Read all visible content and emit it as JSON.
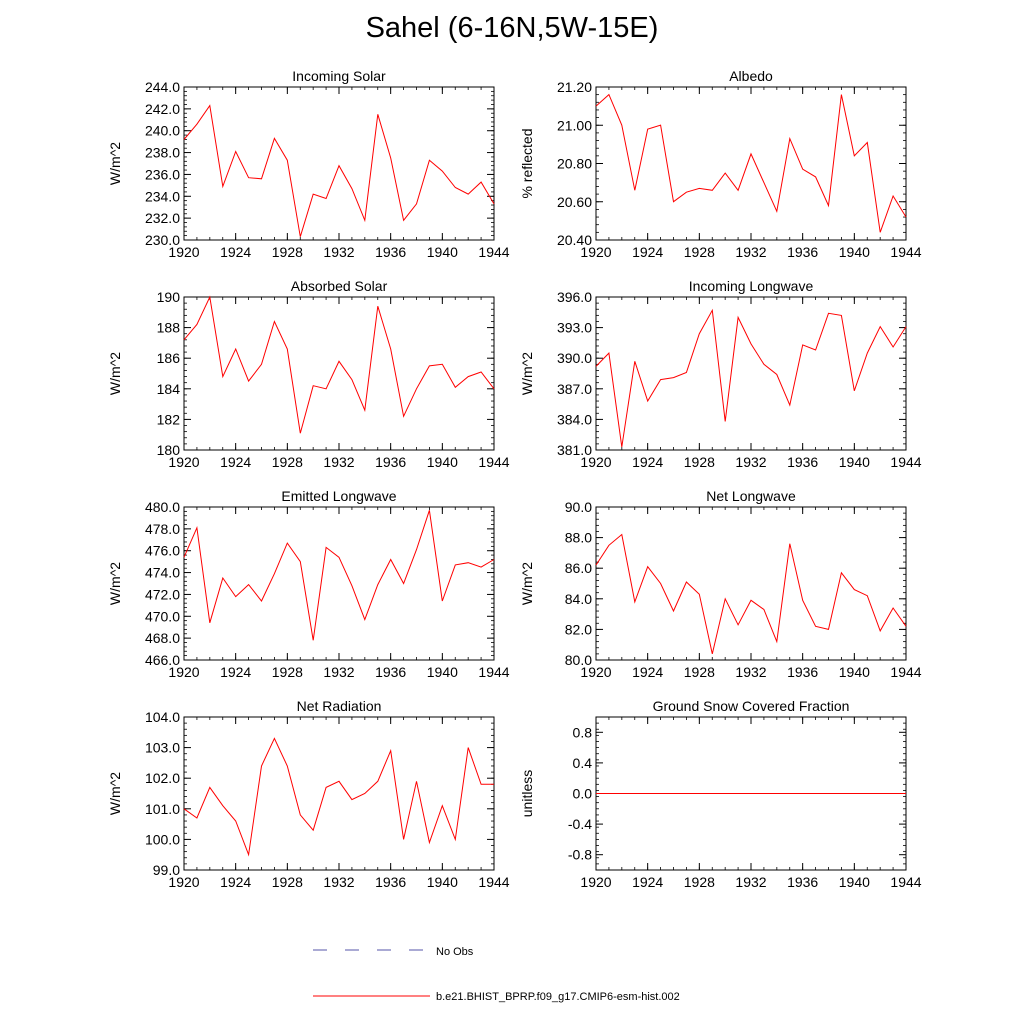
{
  "title": "Sahel (6-16N,5W-15E)",
  "colors": {
    "model": "#ff0000",
    "obs": "#5555aa",
    "axis": "#000000"
  },
  "legend": {
    "obs_label": "No Obs",
    "model_label": "b.e21.BHIST_BPRP.f09_g17.CMIP6-esm-hist.002"
  },
  "chart_data": [
    {
      "type": "line",
      "title": "Incoming Solar",
      "ylabel": "W/m^2",
      "xlim": [
        1920,
        1944
      ],
      "ylim": [
        230,
        244
      ],
      "xticks": [
        "1920",
        "1924",
        "1928",
        "1932",
        "1936",
        "1940",
        "1944"
      ],
      "yticks": [
        "230.0",
        "232.0",
        "234.0",
        "236.0",
        "238.0",
        "240.0",
        "242.0",
        "244.0"
      ],
      "x": [
        1920,
        1921,
        1922,
        1923,
        1924,
        1925,
        1926,
        1927,
        1928,
        1929,
        1930,
        1931,
        1932,
        1933,
        1934,
        1935,
        1936,
        1937,
        1938,
        1939,
        1940,
        1941,
        1942,
        1943,
        1944
      ],
      "series": [
        {
          "name": "b.e21.BHIST_BPRP.f09_g17.CMIP6-esm-hist.002",
          "values": [
            239.2,
            240.6,
            242.3,
            234.9,
            238.1,
            235.7,
            235.6,
            239.3,
            237.3,
            230.3,
            234.2,
            233.8,
            236.8,
            234.7,
            231.8,
            241.5,
            237.5,
            231.8,
            233.3,
            237.3,
            236.3,
            234.8,
            234.2,
            235.3,
            233.3
          ]
        }
      ]
    },
    {
      "type": "line",
      "title": "Albedo",
      "ylabel": "% reflected",
      "xlim": [
        1920,
        1944
      ],
      "ylim": [
        20.4,
        21.2
      ],
      "xticks": [
        "1920",
        "1924",
        "1928",
        "1932",
        "1936",
        "1940",
        "1944"
      ],
      "yticks": [
        "20.40",
        "20.60",
        "20.80",
        "21.00",
        "21.20"
      ],
      "x": [
        1920,
        1921,
        1922,
        1923,
        1924,
        1925,
        1926,
        1927,
        1928,
        1929,
        1930,
        1931,
        1932,
        1933,
        1934,
        1935,
        1936,
        1937,
        1938,
        1939,
        1940,
        1941,
        1942,
        1943,
        1944
      ],
      "series": [
        {
          "name": "b.e21.BHIST_BPRP.f09_g17.CMIP6-esm-hist.002",
          "values": [
            21.1,
            21.16,
            21.0,
            20.66,
            20.98,
            21.0,
            20.6,
            20.65,
            20.67,
            20.66,
            20.75,
            20.66,
            20.85,
            20.7,
            20.55,
            20.93,
            20.77,
            20.73,
            20.58,
            21.16,
            20.84,
            20.91,
            20.44,
            20.63,
            20.52
          ]
        }
      ]
    },
    {
      "type": "line",
      "title": "Absorbed Solar",
      "ylabel": "W/m^2",
      "xlim": [
        1920,
        1944
      ],
      "ylim": [
        180,
        190
      ],
      "xticks": [
        "1920",
        "1924",
        "1928",
        "1932",
        "1936",
        "1940",
        "1944"
      ],
      "yticks": [
        "180",
        "182",
        "184",
        "186",
        "188",
        "190"
      ],
      "x": [
        1920,
        1921,
        1922,
        1923,
        1924,
        1925,
        1926,
        1927,
        1928,
        1929,
        1930,
        1931,
        1932,
        1933,
        1934,
        1935,
        1936,
        1937,
        1938,
        1939,
        1940,
        1941,
        1942,
        1943,
        1944
      ],
      "series": [
        {
          "name": "b.e21.BHIST_BPRP.f09_g17.CMIP6-esm-hist.002",
          "values": [
            187.2,
            188.2,
            190.0,
            184.8,
            186.6,
            184.5,
            185.6,
            188.4,
            186.6,
            181.1,
            184.2,
            184.0,
            185.8,
            184.6,
            182.6,
            189.4,
            186.6,
            182.2,
            184.0,
            185.5,
            185.6,
            184.1,
            184.8,
            185.1,
            184.0
          ]
        }
      ]
    },
    {
      "type": "line",
      "title": "Incoming Longwave",
      "ylabel": "W/m^2",
      "xlim": [
        1920,
        1944
      ],
      "ylim": [
        381,
        396
      ],
      "xticks": [
        "1920",
        "1924",
        "1928",
        "1932",
        "1936",
        "1940",
        "1944"
      ],
      "yticks": [
        "381.0",
        "384.0",
        "387.0",
        "390.0",
        "393.0",
        "396.0"
      ],
      "x": [
        1920,
        1921,
        1922,
        1923,
        1924,
        1925,
        1926,
        1927,
        1928,
        1929,
        1930,
        1931,
        1932,
        1933,
        1934,
        1935,
        1936,
        1937,
        1938,
        1939,
        1940,
        1941,
        1942,
        1943,
        1944
      ],
      "series": [
        {
          "name": "b.e21.BHIST_BPRP.f09_g17.CMIP6-esm-hist.002",
          "values": [
            389.2,
            390.5,
            381.3,
            389.7,
            385.8,
            387.9,
            388.1,
            388.6,
            392.4,
            394.7,
            383.8,
            394.0,
            391.4,
            389.4,
            388.4,
            385.4,
            391.3,
            390.8,
            394.4,
            394.2,
            386.8,
            390.5,
            393.1,
            391.1,
            393.1
          ]
        }
      ]
    },
    {
      "type": "line",
      "title": "Emitted Longwave",
      "ylabel": "W/m^2",
      "xlim": [
        1920,
        1944
      ],
      "ylim": [
        466,
        480
      ],
      "xticks": [
        "1920",
        "1924",
        "1928",
        "1932",
        "1936",
        "1940",
        "1944"
      ],
      "yticks": [
        "466.0",
        "468.0",
        "470.0",
        "472.0",
        "474.0",
        "476.0",
        "478.0",
        "480.0"
      ],
      "x": [
        1920,
        1921,
        1922,
        1923,
        1924,
        1925,
        1926,
        1927,
        1928,
        1929,
        1930,
        1931,
        1932,
        1933,
        1934,
        1935,
        1936,
        1937,
        1938,
        1939,
        1940,
        1941,
        1942,
        1943,
        1944
      ],
      "series": [
        {
          "name": "b.e21.BHIST_BPRP.f09_g17.CMIP6-esm-hist.002",
          "values": [
            475.4,
            478.1,
            469.4,
            473.5,
            471.8,
            472.9,
            471.4,
            473.9,
            476.7,
            475.0,
            467.8,
            476.3,
            475.4,
            472.8,
            469.7,
            472.9,
            475.2,
            473.0,
            476.1,
            479.7,
            471.4,
            474.7,
            474.9,
            474.5,
            475.2
          ]
        }
      ]
    },
    {
      "type": "line",
      "title": "Net Longwave",
      "ylabel": "W/m^2",
      "xlim": [
        1920,
        1944
      ],
      "ylim": [
        80,
        90
      ],
      "xticks": [
        "1920",
        "1924",
        "1928",
        "1932",
        "1936",
        "1940",
        "1944"
      ],
      "yticks": [
        "80.0",
        "82.0",
        "84.0",
        "86.0",
        "88.0",
        "90.0"
      ],
      "x": [
        1920,
        1921,
        1922,
        1923,
        1924,
        1925,
        1926,
        1927,
        1928,
        1929,
        1930,
        1931,
        1932,
        1933,
        1934,
        1935,
        1936,
        1937,
        1938,
        1939,
        1940,
        1941,
        1942,
        1943,
        1944
      ],
      "series": [
        {
          "name": "b.e21.BHIST_BPRP.f09_g17.CMIP6-esm-hist.002",
          "values": [
            86.2,
            87.5,
            88.2,
            83.8,
            86.1,
            85.0,
            83.2,
            85.1,
            84.3,
            80.4,
            84.0,
            82.3,
            83.9,
            83.3,
            81.2,
            87.6,
            83.9,
            82.2,
            82.0,
            85.7,
            84.6,
            84.2,
            81.9,
            83.4,
            82.2
          ]
        }
      ]
    },
    {
      "type": "line",
      "title": "Net Radiation",
      "ylabel": "W/m^2",
      "xlim": [
        1920,
        1944
      ],
      "ylim": [
        99,
        104
      ],
      "xticks": [
        "1920",
        "1924",
        "1928",
        "1932",
        "1936",
        "1940",
        "1944"
      ],
      "yticks": [
        "99.0",
        "100.0",
        "101.0",
        "102.0",
        "103.0",
        "104.0"
      ],
      "x": [
        1920,
        1921,
        1922,
        1923,
        1924,
        1925,
        1926,
        1927,
        1928,
        1929,
        1930,
        1931,
        1932,
        1933,
        1934,
        1935,
        1936,
        1937,
        1938,
        1939,
        1940,
        1941,
        1942,
        1943,
        1944
      ],
      "series": [
        {
          "name": "b.e21.BHIST_BPRP.f09_g17.CMIP6-esm-hist.002",
          "values": [
            101.0,
            100.7,
            101.7,
            101.1,
            100.6,
            99.5,
            102.4,
            103.3,
            102.4,
            100.8,
            100.3,
            101.7,
            101.9,
            101.3,
            101.5,
            101.9,
            102.9,
            100.0,
            101.9,
            99.9,
            101.1,
            100.0,
            103.0,
            101.8,
            101.8
          ]
        }
      ]
    },
    {
      "type": "line",
      "title": "Ground Snow Covered Fraction",
      "ylabel": "unitless",
      "xlim": [
        1920,
        1944
      ],
      "ylim": [
        -1,
        1
      ],
      "xticks": [
        "1920",
        "1924",
        "1928",
        "1932",
        "1936",
        "1940",
        "1944"
      ],
      "yticks": [
        "-0.8",
        "-0.4",
        "0.0",
        "0.4",
        "0.8"
      ],
      "ytick_values": [
        -0.8,
        -0.4,
        0.0,
        0.4,
        0.8
      ],
      "x": [
        1920,
        1944
      ],
      "series": [
        {
          "name": "b.e21.BHIST_BPRP.f09_g17.CMIP6-esm-hist.002",
          "values": [
            0.0,
            0.0
          ]
        }
      ]
    }
  ]
}
